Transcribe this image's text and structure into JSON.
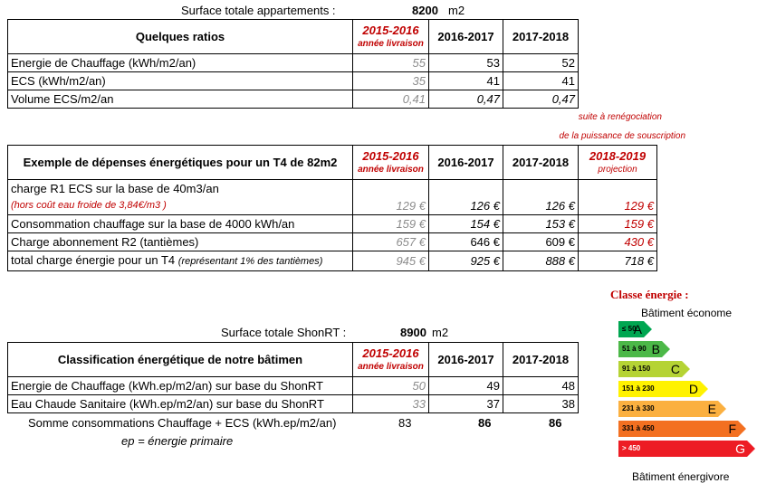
{
  "surface1": {
    "label": "Surface totale appartements :",
    "value": "8200",
    "unit": "m2"
  },
  "ratios": {
    "title": "Quelques ratios",
    "col1": {
      "year": "2015-2016",
      "sub": "année livraison"
    },
    "col2": "2016-2017",
    "col3": "2017-2018",
    "rows": [
      {
        "label": "Energie de Chauffage (kWh/m2/an)",
        "v1": "55",
        "v2": "53",
        "v3": "52"
      },
      {
        "label": "ECS (kWh/m2/an)",
        "v1": "35",
        "v2": "41",
        "v3": "41"
      },
      {
        "label": "Volume ECS/m2/an",
        "v1": "0,41",
        "v2": "0,47",
        "v3": "0,47"
      }
    ]
  },
  "note": {
    "line1": "suite à renégociation",
    "line2": "de la puissance de souscription"
  },
  "depenses": {
    "title": "Exemple de dépenses énergétiques pour un T4 de 82m2",
    "col1": {
      "year": "2015-2016",
      "sub": "année livraison"
    },
    "col2": "2016-2017",
    "col3": "2017-2018",
    "col4": {
      "year": "2018-2019",
      "sub": "projection"
    },
    "rows": [
      {
        "label": "charge R1 ECS sur la base de 40m3/an",
        "label2": "(hors coût eau froide de 3,84€/m3 )",
        "v1": "129 €",
        "v2": "126 €",
        "v3": "126 €",
        "v4": "129 €"
      },
      {
        "label": "Consommation chauffage sur la base de 4000 kWh/an",
        "v1": "159 €",
        "v2": "154 €",
        "v3": "153 €",
        "v4": "159 €"
      },
      {
        "label": "Charge abonnement R2 (tantièmes)",
        "v1": "657 €",
        "v2": "646 €",
        "v3": "609 €",
        "v4": "430 €"
      },
      {
        "label": "total charge énergie pour un T4",
        "label_note": "(représentant 1% des tantièmes)",
        "v1": "945 €",
        "v2": "925 €",
        "v3": "888 €",
        "v4": "718 €"
      }
    ]
  },
  "surface2": {
    "label": "Surface totale ShonRT :",
    "value": "8900",
    "unit": "m2"
  },
  "classif": {
    "title": "Classification énergétique de notre bâtimen",
    "col1": {
      "year": "2015-2016",
      "sub": "année livraison"
    },
    "col2": "2016-2017",
    "col3": "2017-2018",
    "rows": [
      {
        "label": "Energie de Chauffage (kWh.ep/m2/an) sur base du ShonRT",
        "v1": "50",
        "v2": "49",
        "v3": "48"
      },
      {
        "label": "Eau Chaude Sanitaire (kWh.ep/m2/an) sur base du ShonRT",
        "v1": "33",
        "v2": "37",
        "v3": "38"
      }
    ],
    "sum": {
      "label": "Somme consommations Chauffage + ECS (kWh.ep/m2/an)",
      "v1": "83",
      "v2": "86",
      "v3": "86"
    },
    "ep": "ep = énergie primaire"
  },
  "energy_class": {
    "title": "Classe énergie :",
    "top": "Bâtiment économe",
    "bottom": "Bâtiment énergivore",
    "bands": [
      {
        "range": "≤ 50",
        "letter": "A",
        "color": "#00a651"
      },
      {
        "range": "51 à 90",
        "letter": "B",
        "color": "#4cb848"
      },
      {
        "range": "91 à 150",
        "letter": "C",
        "color": "#b5d334"
      },
      {
        "range": "151 à 230",
        "letter": "D",
        "color": "#fff200"
      },
      {
        "range": "231 à 330",
        "letter": "E",
        "color": "#fbb040"
      },
      {
        "range": "331 à 450",
        "letter": "F",
        "color": "#f37021"
      },
      {
        "range": "> 450",
        "letter": "G",
        "color": "#ed1c24"
      }
    ]
  }
}
